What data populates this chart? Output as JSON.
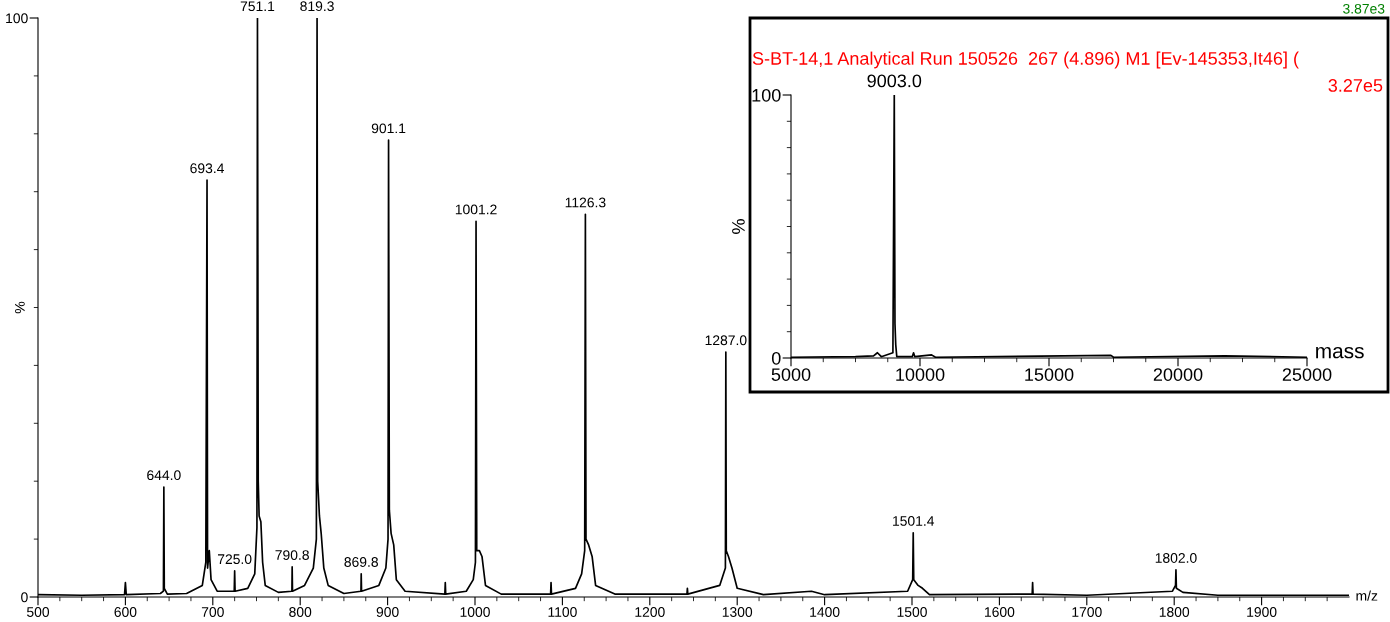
{
  "chart_data": [
    {
      "type": "line",
      "ylabel": "%",
      "xlabel": "m/z",
      "xlim": [
        500,
        2000
      ],
      "ylim": [
        0,
        100
      ],
      "grid": false,
      "marker": "none",
      "line_style": "solid",
      "xticks": [
        500,
        {
          "value": 525,
          "label": null
        },
        {
          "value": 550,
          "label": null
        },
        {
          "value": 575,
          "label": null
        },
        600,
        {
          "value": 625,
          "label": null
        },
        {
          "value": 650,
          "label": null
        },
        {
          "value": 675,
          "label": null
        },
        700,
        {
          "value": 725,
          "label": null
        },
        {
          "value": 750,
          "label": null
        },
        {
          "value": 775,
          "label": null
        },
        800,
        {
          "value": 825,
          "label": null
        },
        {
          "value": 850,
          "label": null
        },
        {
          "value": 875,
          "label": null
        },
        900,
        {
          "value": 925,
          "label": null
        },
        {
          "value": 950,
          "label": null
        },
        {
          "value": 975,
          "label": null
        },
        1000,
        {
          "value": 1025,
          "label": null
        },
        {
          "value": 1050,
          "label": null
        },
        {
          "value": 1075,
          "label": null
        },
        1100,
        {
          "value": 1125,
          "label": null
        },
        {
          "value": 1150,
          "label": null
        },
        {
          "value": 1175,
          "label": null
        },
        1200,
        {
          "value": 1225,
          "label": null
        },
        {
          "value": 1250,
          "label": null
        },
        {
          "value": 1275,
          "label": null
        },
        1300,
        {
          "value": 1325,
          "label": null
        },
        {
          "value": 1350,
          "label": null
        },
        {
          "value": 1375,
          "label": null
        },
        1400,
        {
          "value": 1425,
          "label": null
        },
        {
          "value": 1450,
          "label": null
        },
        {
          "value": 1475,
          "label": null
        },
        1500,
        {
          "value": 1525,
          "label": null
        },
        {
          "value": 1550,
          "label": null
        },
        {
          "value": 1575,
          "label": null
        },
        1600,
        {
          "value": 1625,
          "label": null
        },
        {
          "value": 1650,
          "label": null
        },
        {
          "value": 1675,
          "label": null
        },
        1700,
        {
          "value": 1725,
          "label": null
        },
        {
          "value": 1750,
          "label": null
        },
        {
          "value": 1775,
          "label": null
        },
        1800,
        {
          "value": 1825,
          "label": null
        },
        {
          "value": 1850,
          "label": null
        },
        {
          "value": 1875,
          "label": null
        },
        1900,
        {
          "value": 1925,
          "label": null
        },
        {
          "value": 1950,
          "label": null
        },
        {
          "value": 1975,
          "label": null
        }
      ],
      "yticks": [
        0,
        {
          "value": 10,
          "label": null
        },
        {
          "value": 20,
          "label": null
        },
        {
          "value": 30,
          "label": null
        },
        {
          "value": 40,
          "label": null
        },
        {
          "value": 50,
          "label": null
        },
        {
          "value": 60,
          "label": null
        },
        {
          "value": 70,
          "label": null
        },
        {
          "value": 80,
          "label": null
        },
        {
          "value": 90,
          "label": null
        },
        100
      ],
      "series": [
        {
          "color": "#000000",
          "x": [
            500,
            550,
            599,
            600,
            601,
            640,
            643.5,
            644,
            644.5,
            648,
            670,
            688,
            692,
            693.4,
            694,
            696,
            698,
            705,
            724.5,
            725,
            725.5,
            740,
            748,
            750.5,
            751.1,
            752,
            753,
            755,
            757,
            760,
            775,
            790.5,
            790.8,
            791.2,
            805,
            815,
            818.5,
            819.3,
            820,
            822,
            824,
            827,
            832,
            850,
            869.5,
            869.8,
            870.2,
            890,
            898,
            900.5,
            901.1,
            902,
            904,
            907,
            910,
            920,
            965.5,
            966,
            966.5,
            990,
            998,
            1000.5,
            1001.2,
            1002,
            1005,
            1008,
            1012,
            1030,
            1086.5,
            1087,
            1087.5,
            1115,
            1122,
            1125.5,
            1126.3,
            1127,
            1130,
            1134,
            1138,
            1160,
            1242.5,
            1243,
            1243.5,
            1280,
            1286.5,
            1287.0,
            1287.5,
            1290,
            1294,
            1300,
            1330,
            1385,
            1400,
            1495,
            1500.8,
            1501.4,
            1502,
            1507,
            1512,
            1520,
            1637.5,
            1638,
            1638.5,
            1700,
            1798,
            1801.5,
            1802.0,
            1802.5,
            1810,
            1850,
            2000
          ],
          "values": [
            0.4,
            0.3,
            0.4,
            2.5,
            0.4,
            0.6,
            1,
            19.0,
            1.5,
            0.5,
            0.6,
            2,
            6,
            72.0,
            5,
            8,
            3,
            1,
            1,
            4.5,
            1,
            1.5,
            4,
            12,
            100,
            20,
            14,
            13,
            6,
            2,
            0.8,
            1,
            5.2,
            1,
            2,
            5,
            10,
            100,
            20,
            14,
            11,
            5,
            2,
            0.6,
            1,
            4.0,
            1,
            2,
            5,
            10,
            78.9,
            15,
            11,
            9,
            3,
            1,
            0.5,
            2.5,
            0.5,
            1,
            3,
            6,
            64.9,
            8,
            8,
            7,
            2,
            0.5,
            0.5,
            2.5,
            0.5,
            1.5,
            4,
            8,
            66.1,
            10,
            9,
            7,
            2,
            0.5,
            0.5,
            1.5,
            0.5,
            2,
            5,
            42.3,
            8,
            7,
            5,
            1.5,
            0.4,
            1,
            0.4,
            1,
            3,
            11.1,
            3,
            2,
            1.5,
            0.4,
            0.5,
            2.5,
            0.5,
            0.3,
            1,
            2,
            4.7,
            1.5,
            0.8,
            0.3,
            0.3
          ]
        }
      ],
      "annotations": [
        {
          "text": "644.0",
          "x": 644.0,
          "y": 19.0
        },
        {
          "text": "693.4",
          "x": 693.4,
          "y": 72.0
        },
        {
          "text": "725.0",
          "x": 725.0,
          "y": 4.5
        },
        {
          "text": "751.1",
          "x": 751.1,
          "y": 100
        },
        {
          "text": "790.8",
          "x": 790.8,
          "y": 5.2
        },
        {
          "text": "819.3",
          "x": 819.3,
          "y": 100
        },
        {
          "text": "869.8",
          "x": 869.8,
          "y": 4.0
        },
        {
          "text": "901.1",
          "x": 901.1,
          "y": 78.9
        },
        {
          "text": "1001.2",
          "x": 1001.2,
          "y": 64.9
        },
        {
          "text": "1126.3",
          "x": 1126.3,
          "y": 66.1
        },
        {
          "text": "1287.0",
          "x": 1287.0,
          "y": 42.3
        },
        {
          "text": "1501.4",
          "x": 1501.4,
          "y": 11.1
        },
        {
          "text": "1802.0",
          "x": 1802.0,
          "y": 4.7
        },
        "3.87e3"
      ]
    },
    {
      "type": "line",
      "title": "S-BT-14,1 Analytical Run 150526  267 (4.896) M1 [Ev-145353,It46] (",
      "ylabel": "%",
      "xlabel": "mass",
      "xlim": [
        5000,
        25000
      ],
      "ylim": [
        0,
        100
      ],
      "grid": false,
      "marker": "none",
      "line_style": "solid",
      "xticks": [
        5000,
        {
          "value": 6250,
          "label": null
        },
        {
          "value": 7500,
          "label": null
        },
        {
          "value": 8750,
          "label": null
        },
        10000,
        {
          "value": 11250,
          "label": null
        },
        {
          "value": 12500,
          "label": null
        },
        {
          "value": 13750,
          "label": null
        },
        15000,
        {
          "value": 16250,
          "label": null
        },
        {
          "value": 17500,
          "label": null
        },
        {
          "value": 18750,
          "label": null
        },
        20000,
        {
          "value": 21250,
          "label": null
        },
        {
          "value": 22500,
          "label": null
        },
        {
          "value": 23750,
          "label": null
        },
        25000
      ],
      "yticks": [
        0,
        {
          "value": 10,
          "label": null
        },
        {
          "value": 20,
          "label": null
        },
        {
          "value": 30,
          "label": null
        },
        {
          "value": 40,
          "label": null
        },
        {
          "value": 50,
          "label": null
        },
        {
          "value": 60,
          "label": null
        },
        {
          "value": 70,
          "label": null
        },
        {
          "value": 80,
          "label": null
        },
        {
          "value": 90,
          "label": null
        },
        100
      ],
      "series": [
        {
          "color": "#000000",
          "x": [
            5000,
            7500,
            8200,
            8350,
            8500,
            8950,
            9003,
            9030,
            9060,
            9100,
            9700,
            9750,
            9800,
            10450,
            10600,
            17400,
            17500,
            21800,
            25000
          ],
          "values": [
            0.3,
            0.5,
            0.8,
            2,
            0.5,
            2,
            100,
            13,
            5,
            0.5,
            0.5,
            2,
            0.5,
            1.2,
            0.3,
            1,
            0.3,
            0.8,
            0.3
          ]
        }
      ],
      "annotations": [
        {
          "text": "9003.0",
          "x": 9003,
          "y": 100
        },
        "3.27e5"
      ]
    }
  ]
}
